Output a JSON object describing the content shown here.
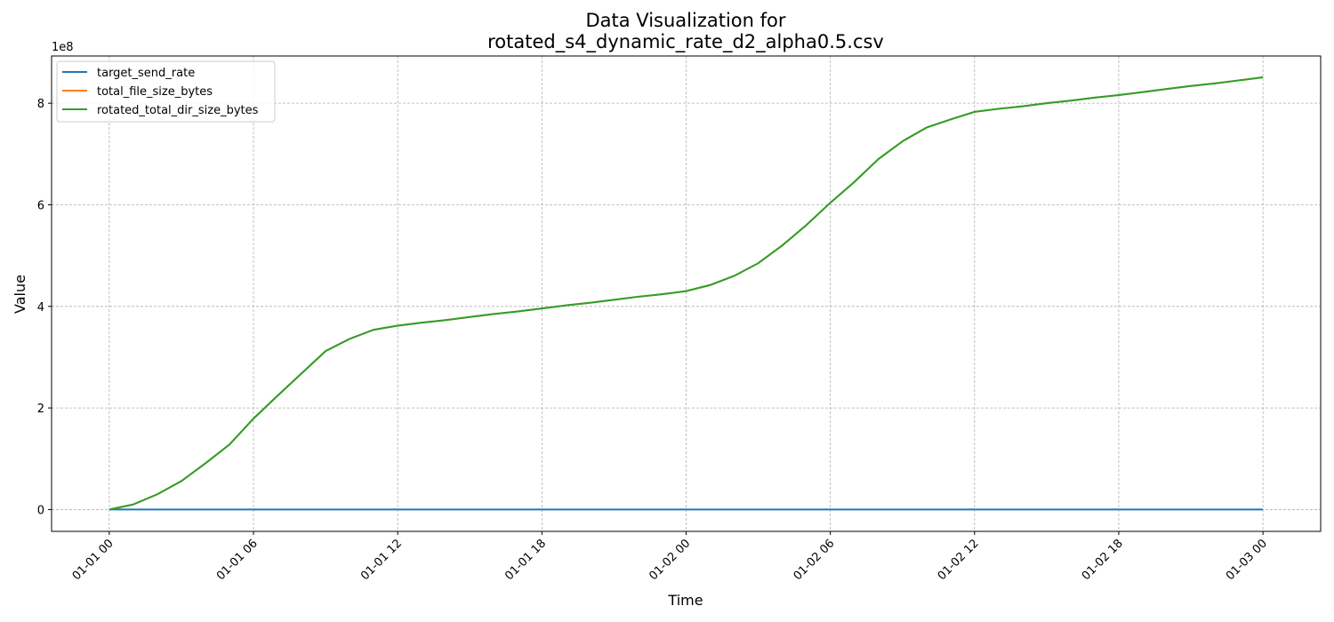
{
  "chart_data": {
    "type": "line",
    "title": [
      "Data Visualization for",
      "rotated_s4_dynamic_rate_d2_alpha0.5.csv"
    ],
    "xlabel": "Time",
    "ylabel": "Value",
    "y_offset_label": "1e8",
    "x": [
      0,
      1,
      2,
      3,
      4,
      5,
      6,
      7,
      8,
      9,
      10,
      11,
      12,
      13,
      14,
      15,
      16,
      17,
      18,
      19,
      20,
      21,
      22,
      23,
      24,
      25,
      26,
      27,
      28,
      29,
      30,
      31,
      32,
      33,
      34,
      35,
      36,
      37,
      38,
      39,
      40,
      41,
      42,
      43,
      44,
      45,
      46,
      47,
      48
    ],
    "series": [
      {
        "name": "target_send_rate",
        "color": "#1f77b4",
        "values": [
          0,
          0,
          0,
          0,
          0,
          0,
          0,
          0,
          0,
          0,
          0,
          0,
          0,
          0,
          0,
          0,
          0,
          0,
          0,
          0,
          0,
          0,
          0,
          0,
          0,
          0,
          0,
          0,
          0,
          0,
          0,
          0,
          0,
          0,
          0,
          0,
          0,
          0,
          0,
          0,
          0,
          0,
          0,
          0,
          0,
          0,
          0,
          0,
          0
        ]
      },
      {
        "name": "total_file_size_bytes",
        "color": "#ff7f0e",
        "values": [
          0,
          0.1,
          0.3,
          0.56,
          0.91,
          1.28,
          1.79,
          2.24,
          2.68,
          3.12,
          3.36,
          3.54,
          3.62,
          3.68,
          3.73,
          3.79,
          3.85,
          3.9,
          3.96,
          4.02,
          4.07,
          4.13,
          4.19,
          4.24,
          4.3,
          4.42,
          4.6,
          4.85,
          5.2,
          5.6,
          6.04,
          6.45,
          6.9,
          7.25,
          7.52,
          7.68,
          7.83,
          7.89,
          7.94,
          8,
          8.05,
          8.11,
          8.16,
          8.22,
          8.28,
          8.34,
          8.39,
          8.45,
          8.51
        ]
      },
      {
        "name": "rotated_total_dir_size_bytes",
        "color": "#2ca02c",
        "values": [
          0,
          0.1,
          0.3,
          0.56,
          0.91,
          1.28,
          1.79,
          2.24,
          2.68,
          3.12,
          3.36,
          3.54,
          3.62,
          3.68,
          3.73,
          3.79,
          3.85,
          3.9,
          3.96,
          4.02,
          4.07,
          4.13,
          4.19,
          4.24,
          4.3,
          4.42,
          4.6,
          4.85,
          5.2,
          5.6,
          6.04,
          6.45,
          6.9,
          7.25,
          7.52,
          7.68,
          7.83,
          7.89,
          7.94,
          8,
          8.05,
          8.11,
          8.16,
          8.22,
          8.28,
          8.34,
          8.39,
          8.45,
          8.51
        ]
      }
    ],
    "xlim": [
      -2.4,
      50.4
    ],
    "xticks": [
      {
        "value": 0,
        "label": "01-01 00"
      },
      {
        "value": 6,
        "label": "01-01 06"
      },
      {
        "value": 12,
        "label": "01-01 12"
      },
      {
        "value": 18,
        "label": "01-01 18"
      },
      {
        "value": 24,
        "label": "01-02 00"
      },
      {
        "value": 30,
        "label": "01-02 06"
      },
      {
        "value": 36,
        "label": "01-02 12"
      },
      {
        "value": 42,
        "label": "01-02 18"
      },
      {
        "value": 48,
        "label": "01-03 00"
      }
    ],
    "ylim": [
      -0.43,
      8.93
    ],
    "yticks": [
      0,
      2,
      4,
      6,
      8
    ],
    "grid": true,
    "legend": "upper-left"
  }
}
